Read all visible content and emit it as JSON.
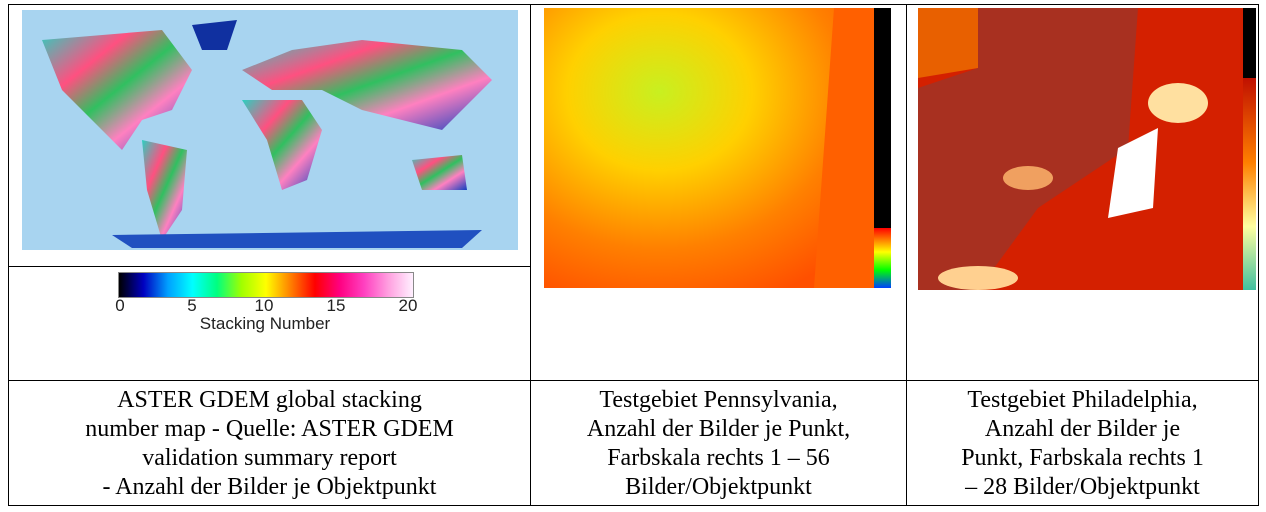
{
  "table": {
    "rows": [
      [
        {
          "colorbar": {
            "ticks": [
              "0",
              "5",
              "10",
              "15",
              "20"
            ],
            "label": "Stacking Number"
          }
        },
        {},
        {}
      ],
      [
        {
          "caption": [
            "ASTER GDEM global stacking",
            "number map - Quelle: ASTER GDEM",
            "validation summary report",
            "- Anzahl der Bilder je Objektpunkt"
          ]
        },
        {
          "caption": [
            "Testgebiet Pennsylvania,",
            "Anzahl der Bilder je Punkt,",
            "Farbskala rechts 1 – 56",
            "Bilder/Objektpunkt"
          ]
        },
        {
          "caption": [
            "Testgebiet Philadelphia,",
            "Anzahl der Bilder je",
            "Punkt, Farbskala rechts 1",
            "– 28 Bilder/Objektpunkt"
          ]
        }
      ]
    ]
  }
}
